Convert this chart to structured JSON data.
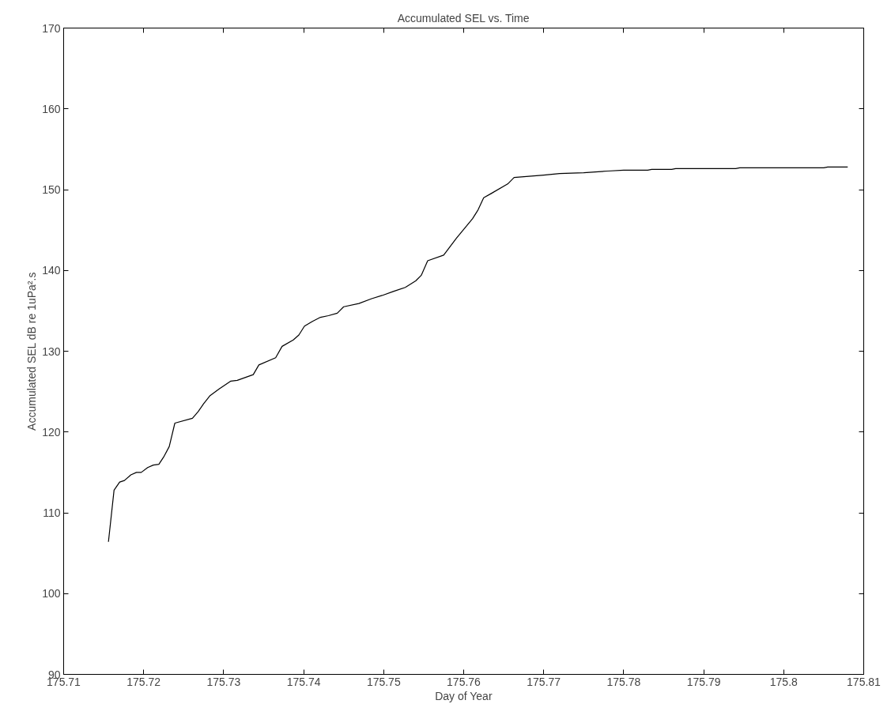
{
  "chart_data": {
    "type": "line",
    "title": "Accumulated SEL vs. Time",
    "xlabel": "Day of Year",
    "ylabel": "Accumulated SEL dB re 1uPa².s",
    "x": [
      175.7156,
      175.7163,
      175.717,
      175.7176,
      175.7184,
      175.7191,
      175.7197,
      175.7205,
      175.7212,
      175.7219,
      175.7225,
      175.7232,
      175.7239,
      175.7261,
      175.7268,
      175.7275,
      175.7283,
      175.7294,
      175.7309,
      175.7317,
      175.7337,
      175.7344,
      175.7365,
      175.7373,
      175.7387,
      175.7394,
      175.7401,
      175.7411,
      175.7421,
      175.7431,
      175.7442,
      175.745,
      175.7469,
      175.7485,
      175.7498,
      175.7512,
      175.7527,
      175.754,
      175.7547,
      175.7555,
      175.7575,
      175.7591,
      175.7611,
      175.7618,
      175.7625,
      175.7634,
      175.7655,
      175.7663,
      175.77,
      175.772,
      175.775,
      175.778,
      175.78,
      175.783,
      175.7835,
      175.786,
      175.7865,
      175.794,
      175.7945,
      175.805,
      175.8055,
      175.808
    ],
    "series": [
      {
        "color": "#000000",
        "values": [
          106.4,
          112.8,
          113.8,
          114.0,
          114.7,
          115.0,
          115.0,
          115.6,
          115.9,
          116.0,
          116.9,
          118.2,
          121.1,
          121.7,
          122.5,
          123.5,
          124.5,
          125.3,
          126.3,
          126.4,
          127.1,
          128.3,
          129.2,
          130.6,
          131.4,
          132.0,
          133.1,
          133.7,
          134.2,
          134.4,
          134.7,
          135.5,
          135.9,
          136.5,
          136.9,
          137.4,
          137.9,
          138.7,
          139.4,
          141.2,
          141.9,
          144.0,
          146.4,
          147.5,
          149.0,
          149.5,
          150.7,
          151.5,
          151.8,
          152.0,
          152.1,
          152.3,
          152.4,
          152.4,
          152.5,
          152.5,
          152.6,
          152.6,
          152.7,
          152.7,
          152.8,
          152.8
        ]
      }
    ],
    "xlim": [
      175.71,
      175.81
    ],
    "ylim": [
      90,
      170
    ],
    "xticks": [
      175.71,
      175.72,
      175.73,
      175.74,
      175.75,
      175.76,
      175.77,
      175.78,
      175.79,
      {
        "value": 175.8,
        "label": "175.8"
      },
      175.81
    ],
    "yticks": [
      90,
      100,
      110,
      120,
      130,
      140,
      150,
      160,
      170
    ],
    "grid": false,
    "marker": "none",
    "line_style": "solid"
  }
}
